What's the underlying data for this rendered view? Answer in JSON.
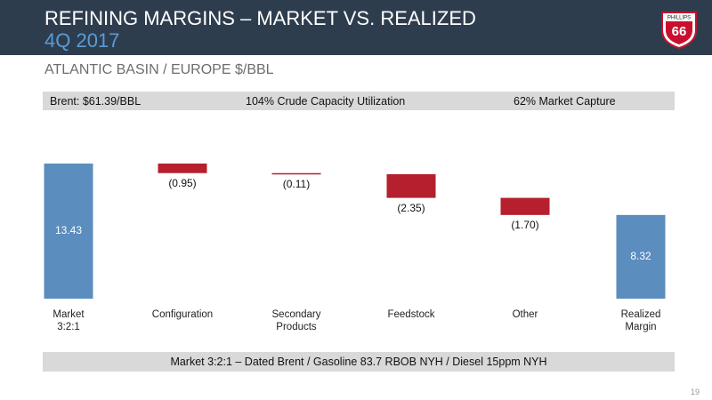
{
  "header": {
    "title": "REFINING MARGINS – MARKET VS. REALIZED",
    "subtitle": "4Q 2017"
  },
  "logo": {
    "top": "PHILLIPS",
    "number": "66"
  },
  "section_title": "ATLANTIC BASIN / EUROPE $/BBL",
  "info_bar": [
    "Brent: $61.39/BBL",
    "104% Crude Capacity Utilization",
    "62% Market Capture"
  ],
  "chart_data": {
    "type": "waterfall",
    "categories": [
      "Market\n3:2:1",
      "Configuration",
      "Secondary\nProducts",
      "Feedstock",
      "Other",
      "Realized\nMargin"
    ],
    "values": [
      13.43,
      -0.95,
      -0.11,
      -2.35,
      -1.7,
      8.32
    ],
    "value_labels": [
      "13.43",
      "(0.95)",
      "(0.11)",
      "(2.35)",
      "(1.70)",
      "8.32"
    ],
    "measure": [
      "total",
      "relative",
      "relative",
      "relative",
      "relative",
      "total"
    ],
    "total_color": "#5b8dbf",
    "negative_color": "#b51f2e"
  },
  "footnote": "Market 3:2:1 – Dated Brent / Gasoline 83.7 RBOB NYH / Diesel 15ppm NYH",
  "page_number": "19"
}
